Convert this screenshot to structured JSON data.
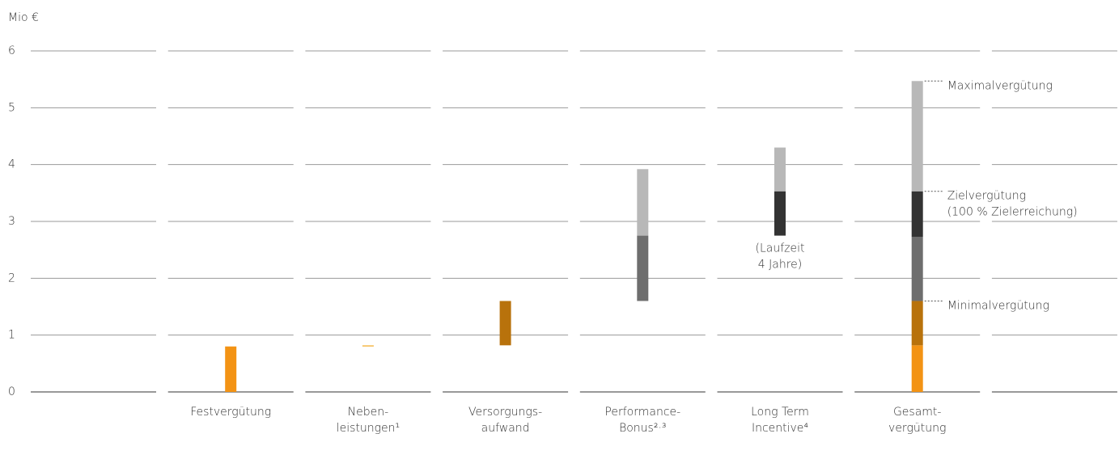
{
  "chart_data": {
    "type": "floating-bar",
    "y_label": "Mio €",
    "ylim": [
      0,
      6
    ],
    "yticks": [
      0,
      1,
      2,
      3,
      4,
      5,
      6
    ],
    "grid": true,
    "categories": [
      null,
      [
        "Festvergütung"
      ],
      [
        "Neben-",
        "leistungen¹"
      ],
      [
        "Versorgungs-",
        "aufwand"
      ],
      [
        "Performance-",
        "Bonus²·³"
      ],
      [
        "Long Term",
        "Incentive⁴"
      ],
      [
        "Gesamt-",
        "vergütung"
      ],
      null
    ],
    "bars": [
      null,
      {
        "start": 0,
        "segments": [
          {
            "value": 0.8,
            "color": "#f39314"
          }
        ]
      },
      {
        "start": 0.8,
        "segments": [
          {
            "value": 0.02,
            "color": "#f5b94a"
          }
        ]
      },
      {
        "start": 0.82,
        "segments": [
          {
            "value": 0.78,
            "color": "#b8720c"
          }
        ]
      },
      {
        "start": 1.6,
        "segments": [
          {
            "value": 1.15,
            "color": "#6e6e6e"
          },
          {
            "value": 1.17,
            "color": "#b8b8b8"
          }
        ]
      },
      {
        "start": 2.75,
        "segments": [
          {
            "value": 0.78,
            "color": "#333333"
          },
          {
            "value": 0.77,
            "color": "#b8b8b8"
          }
        ],
        "note": [
          "(Laufzeit",
          "4 Jahre)"
        ]
      },
      {
        "start": 0,
        "segments": [
          {
            "value": 0.82,
            "color": "#f39314"
          },
          {
            "value": 0.78,
            "color": "#b8720c"
          },
          {
            "value": 1.13,
            "color": "#6e6e6e"
          },
          {
            "value": 0.8,
            "color": "#333333"
          },
          {
            "value": 1.94,
            "color": "#b8b8b8"
          }
        ]
      },
      null
    ],
    "annotations": [
      {
        "text": [
          "Maximalvergütung"
        ],
        "y": 5.47
      },
      {
        "text": [
          "Zielvergütung",
          "(100 % Zielerreichung)"
        ],
        "y": 3.53
      },
      {
        "text": [
          "Minimalvergütung"
        ],
        "y": 1.6
      }
    ]
  }
}
